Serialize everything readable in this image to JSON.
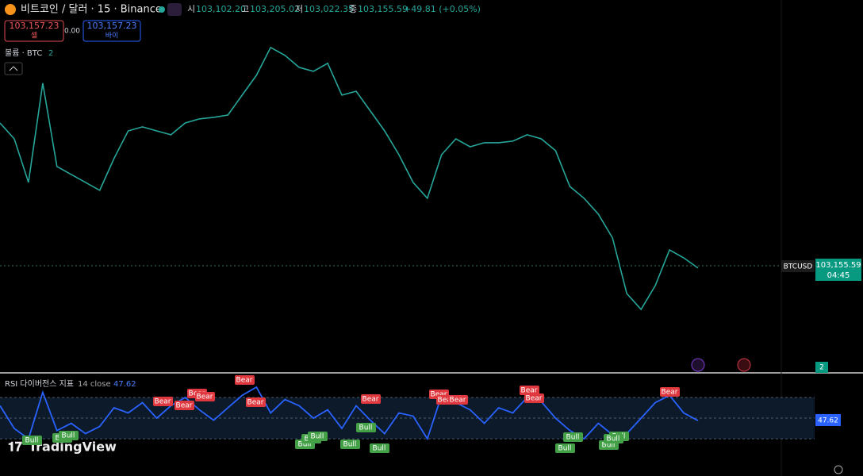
{
  "header": {
    "symbol": "비트코인 / 달러 · 15 · Binance",
    "ohlc": [
      {
        "label": "시",
        "value": "103,102.20"
      },
      {
        "label": "고",
        "value": "103,205.02"
      },
      {
        "label": "저",
        "value": "103,022.35"
      },
      {
        "label": "종",
        "value": "103,155.59"
      }
    ],
    "change": "+49.81 (+0.05%)"
  },
  "trade": {
    "sell_price": "103,157.23",
    "sell_label": "셀",
    "spread": "0.00",
    "buy_price": "103,157.23",
    "buy_label": "바이"
  },
  "volume_legend": {
    "label": "볼륨 · BTC",
    "value": "2"
  },
  "price_tag": {
    "symbol": "BTCUSD",
    "price": "103,155.59",
    "countdown": "04:45"
  },
  "volume_tag": "2",
  "indicator": {
    "title": "RSI 다이버전스 지표",
    "params": "14 close",
    "value": "47.62"
  },
  "rsi_tag": "47.62",
  "signals": [
    "Bear",
    "Bear",
    "Bear",
    "Bear",
    "Bear",
    "Bear",
    "Bear",
    "Bear",
    "Bear",
    "Bear",
    "Bear",
    "Bear",
    "Bear",
    "Bull",
    "Bull",
    "Bull",
    "Bull",
    "Bull",
    "Bull",
    "Bull",
    "Bull",
    "Bull",
    "Bull",
    "Bull",
    "Bull",
    "Bull",
    "Bull"
  ],
  "logo": "TradingView",
  "chart_data": [
    {
      "type": "line",
      "color": "#26a69a",
      "values": [
        104162,
        104052,
        103750,
        104437,
        103860,
        103805,
        103750,
        103695,
        103915,
        104107,
        104135,
        104107,
        104080,
        104162,
        104190,
        104201,
        104217,
        104355,
        104492,
        104685,
        104630,
        104547,
        104520,
        104575,
        104355,
        104382,
        104245,
        104107,
        103942,
        103750,
        103640,
        103942,
        104052,
        103997,
        104025,
        104025,
        104036,
        104080,
        104052,
        103970,
        103722,
        103640,
        103530,
        103365,
        102980,
        102870,
        103035,
        103282,
        103227,
        103156
      ],
      "ylim": [
        102430,
        105003
      ]
    },
    {
      "type": "line",
      "color": "#2962ff",
      "values": [
        62,
        40,
        30,
        75,
        38,
        45,
        35,
        42,
        60,
        55,
        65,
        50,
        62,
        70,
        58,
        48,
        60,
        72,
        80,
        55,
        68,
        62,
        50,
        58,
        40,
        62,
        48,
        35,
        55,
        52,
        30,
        72,
        65,
        58,
        45,
        60,
        55,
        70,
        66,
        50,
        38,
        30,
        45,
        34,
        35,
        50,
        65,
        72,
        55,
        47.62
      ],
      "ylim": [
        17,
        90
      ],
      "bands": [
        70,
        50,
        30
      ]
    }
  ]
}
